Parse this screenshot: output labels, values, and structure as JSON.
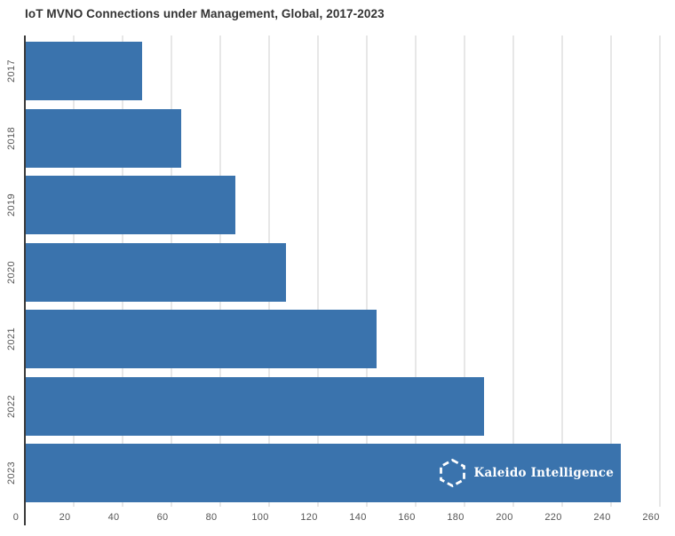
{
  "title": "IoT MVNO Connections under Management, Global, 2017-2023",
  "logo": {
    "text": "Kaleido Intelligence",
    "icon": "hexagon-dashed-icon"
  },
  "colors": {
    "bar": "#3A73AD",
    "axis": "#3a3a3a",
    "gridline": "#e7e7e7",
    "tick_label": "#555555",
    "title": "#333333",
    "logo_text": "#ffffff"
  },
  "chart_data": {
    "type": "bar",
    "orientation": "horizontal",
    "title": "IoT MVNO Connections under Management, Global, 2017-2023",
    "categories": [
      "2017",
      "2018",
      "2019",
      "2020",
      "2021",
      "2022",
      "2023"
    ],
    "values": [
      48,
      64,
      86,
      107,
      144,
      188,
      244
    ],
    "xlabel": "",
    "ylabel": "",
    "xlim": [
      0,
      260
    ],
    "xticks": [
      0,
      20,
      40,
      60,
      80,
      100,
      120,
      140,
      160,
      180,
      200,
      220,
      240,
      260
    ],
    "grid": true,
    "legend": false,
    "annotation": "Kaleido Intelligence logo inside 2023 bar"
  }
}
